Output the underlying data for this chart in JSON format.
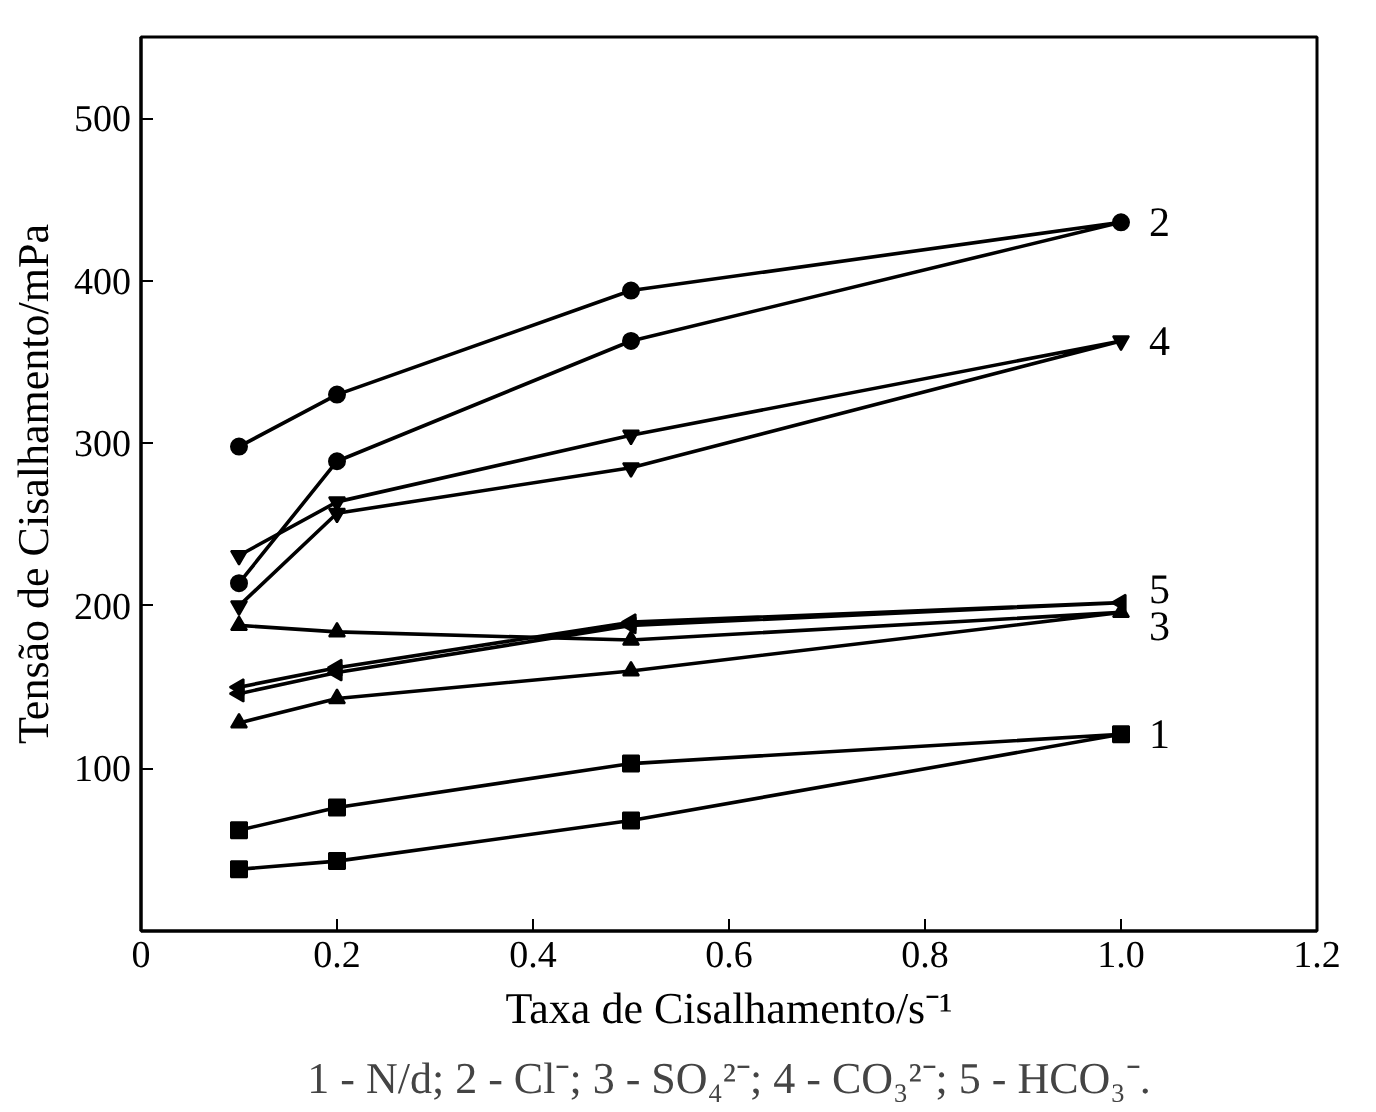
{
  "chart_data": {
    "type": "line",
    "xlabel": "Taxa de Cisalhamento/s⁻¹",
    "ylabel": "Tensão de Cisalhamento/mPa",
    "annotations": [
      "1 - N/d; 2 - Cl⁻; 3 - SO₄²⁻; 4 - CO₃²⁻; 5 - HCO₃⁻."
    ],
    "xlim": [
      0,
      1.2
    ],
    "xticks": [
      0,
      0.2,
      0.4,
      0.6,
      0.8,
      {
        "value": 1.0,
        "label": "1.0"
      },
      1.2
    ],
    "ylim": [
      0,
      550
    ],
    "yticks": [
      100,
      200,
      300,
      400,
      500
    ],
    "grid": false,
    "line_style": "solid",
    "series": [
      {
        "name": "1",
        "color": "#000000",
        "marker": "square",
        "x": [
          0.1,
          0.2,
          0.5,
          1.0,
          0.5,
          0.2,
          0.1
        ],
        "values": [
          62,
          76,
          103,
          121,
          68,
          43,
          38
        ]
      },
      {
        "name": "2",
        "color": "#000000",
        "marker": "circle",
        "x": [
          0.1,
          0.2,
          0.5,
          1.0,
          0.5,
          0.2,
          0.1
        ],
        "values": [
          298,
          330,
          394,
          436,
          363,
          289,
          214
        ]
      },
      {
        "name": "3",
        "color": "#000000",
        "marker": "triangle",
        "x": [
          0.1,
          0.2,
          0.5,
          1.0,
          0.5,
          0.2,
          0.1
        ],
        "values": [
          188,
          184,
          179,
          196,
          160,
          143,
          128
        ]
      },
      {
        "name": "4",
        "color": "#000000",
        "marker": "triangle_down",
        "x": [
          0.1,
          0.2,
          0.5,
          1.0,
          0.5,
          0.2,
          0.1
        ],
        "values": [
          231,
          264,
          305,
          363,
          285,
          257,
          200
        ]
      },
      {
        "name": "5",
        "color": "#000000",
        "marker": "triangle_left",
        "x": [
          0.1,
          0.2,
          0.5,
          1.0,
          0.5,
          0.2,
          0.1
        ],
        "values": [
          150,
          162,
          190,
          202,
          188,
          159,
          146
        ]
      }
    ]
  }
}
